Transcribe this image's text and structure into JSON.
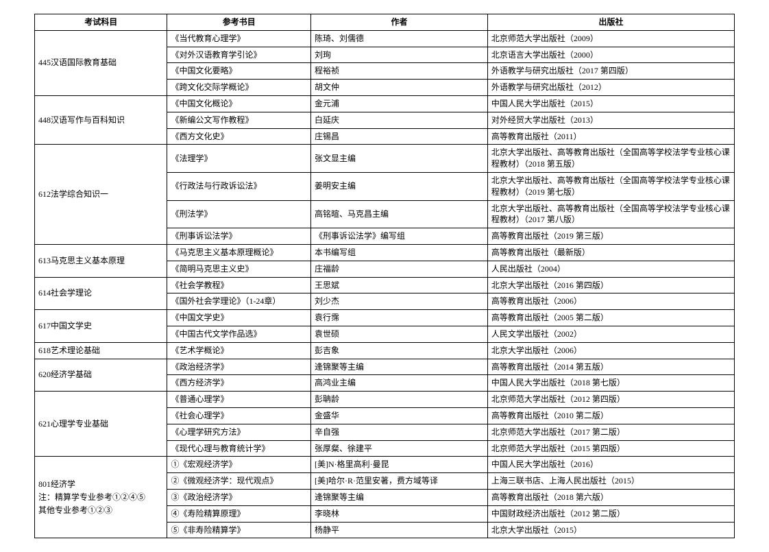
{
  "columns": [
    "考试科目",
    "参考书目",
    "作者",
    "出版社"
  ],
  "groups": [
    {
      "subject": "445汉语国际教育基础",
      "rows": [
        {
          "book": "《当代教育心理学》",
          "author": "陈琦、刘儒德",
          "publisher": "北京师范大学出版社（2009）"
        },
        {
          "book": "《对外汉语教育学引论》",
          "author": "刘珣",
          "publisher": "北京语言大学出版社（2000）"
        },
        {
          "book": "《中国文化要略》",
          "author": "程裕祯",
          "publisher": "外语教学与研究出版社（2017 第四版）"
        },
        {
          "book": "《跨文化交际学概论》",
          "author": "胡文仲",
          "publisher": "外语教学与研究出版社（2012）"
        }
      ]
    },
    {
      "subject": "448汉语写作与百科知识",
      "rows": [
        {
          "book": "《中国文化概论》",
          "author": "金元浦",
          "publisher": "中国人民大学出版社（2015）"
        },
        {
          "book": "《新编公文写作教程》",
          "author": "白延庆",
          "publisher": "对外经贸大学出版社（2013）"
        },
        {
          "book": "《西方文化史》",
          "author": "庄锡昌",
          "publisher": "高等教育出版社（2011）"
        }
      ]
    },
    {
      "subject": "612法学综合知识一",
      "rows": [
        {
          "book": "《法理学》",
          "author": "张文显主编",
          "publisher": "北京大学出版社、高等教育出版社（全国高等学校法学专业核心课程教材）（2018 第五版）"
        },
        {
          "book": "《行政法与行政诉讼法》",
          "author": "姜明安主编",
          "publisher": "北京大学出版社、高等教育出版社（全国高等学校法学专业核心课程教材）（2019 第七版）"
        },
        {
          "book": "《刑法学》",
          "author": "高铭暄、马克昌主编",
          "publisher": "北京大学出版社、高等教育出版社（全国高等学校法学专业核心课程教材）（2017 第八版）"
        },
        {
          "book": "《刑事诉讼法学》",
          "author": "《刑事诉讼法学》编写组",
          "publisher": "高等教育出版社（2019 第三版）"
        }
      ]
    },
    {
      "subject": "613马克思主义基本原理",
      "rows": [
        {
          "book": "《马克思主义基本原理概论》",
          "author": "本书编写组",
          "publisher": "高等教育出版社（最新版）"
        },
        {
          "book": "《简明马克思主义史》",
          "author": "庄福龄",
          "publisher": "人民出版社（2004）"
        }
      ]
    },
    {
      "subject": "614社会学理论",
      "rows": [
        {
          "book": "《社会学教程》",
          "author": "王思斌",
          "publisher": "北京大学出版社（2016 第四版）"
        },
        {
          "book": "《国外社会学理论》（1-24章）",
          "author": "刘少杰",
          "publisher": "高等教育出版社（2006）"
        }
      ]
    },
    {
      "subject": "617中国文学史",
      "rows": [
        {
          "book": "《中国文学史》",
          "author": "袁行霈",
          "publisher": "高等教育出版社（2005 第二版）"
        },
        {
          "book": "《中国古代文学作品选》",
          "author": "袁世硕",
          "publisher": "人民文学出版社（2002）"
        }
      ]
    },
    {
      "subject": "618艺术理论基础",
      "rows": [
        {
          "book": "《艺术学概论》",
          "author": "彭吉象",
          "publisher": "北京大学出版社（2006）"
        }
      ]
    },
    {
      "subject": "620经济学基础",
      "rows": [
        {
          "book": "《政治经济学》",
          "author": "逄锦聚等主编",
          "publisher": "高等教育出版社（2014 第五版）"
        },
        {
          "book": "《西方经济学》",
          "author": "高鸿业主编",
          "publisher": "中国人民大学出版社（2018 第七版）"
        }
      ]
    },
    {
      "subject": "621心理学专业基础",
      "rows": [
        {
          "book": "《普通心理学》",
          "author": "彭聃龄",
          "publisher": "北京师范大学出版社（2012 第四版）"
        },
        {
          "book": "《社会心理学》",
          "author": "金盛华",
          "publisher": "高等教育出版社（2010 第二版）"
        },
        {
          "book": "《心理学研究方法》",
          "author": "辛自强",
          "publisher": "北京师范大学出版社（2017 第二版）"
        },
        {
          "book": "《现代心理与教育统计学》",
          "author": "张厚粲、徐建平",
          "publisher": "北京师范大学出版社（2015 第四版）"
        }
      ]
    },
    {
      "subject": "801经济学",
      "notes": [
        "注：精算学专业参考①②④⑤",
        "其他专业参考①②③"
      ],
      "rows": [
        {
          "book": "①《宏观经济学》",
          "author": "[美]N·格里高利·曼昆",
          "publisher": "中国人民大学出版社（2016）"
        },
        {
          "book": "②《微观经济学：现代观点》",
          "author": "[美]哈尔·R·范里安著，费方域等译",
          "publisher": "上海三联书店、上海人民出版社（2015）"
        },
        {
          "book": "③《政治经济学》",
          "author": "逄锦聚等主编",
          "publisher": "高等教育出版社（2018 第六版）"
        },
        {
          "book": "④《寿险精算原理》",
          "author": "李晓林",
          "publisher": "中国财政经济出版社（2012 第二版）"
        },
        {
          "book": "⑤《非寿险精算学》",
          "author": "杨静平",
          "publisher": "北京大学出版社（2015）"
        }
      ]
    }
  ]
}
